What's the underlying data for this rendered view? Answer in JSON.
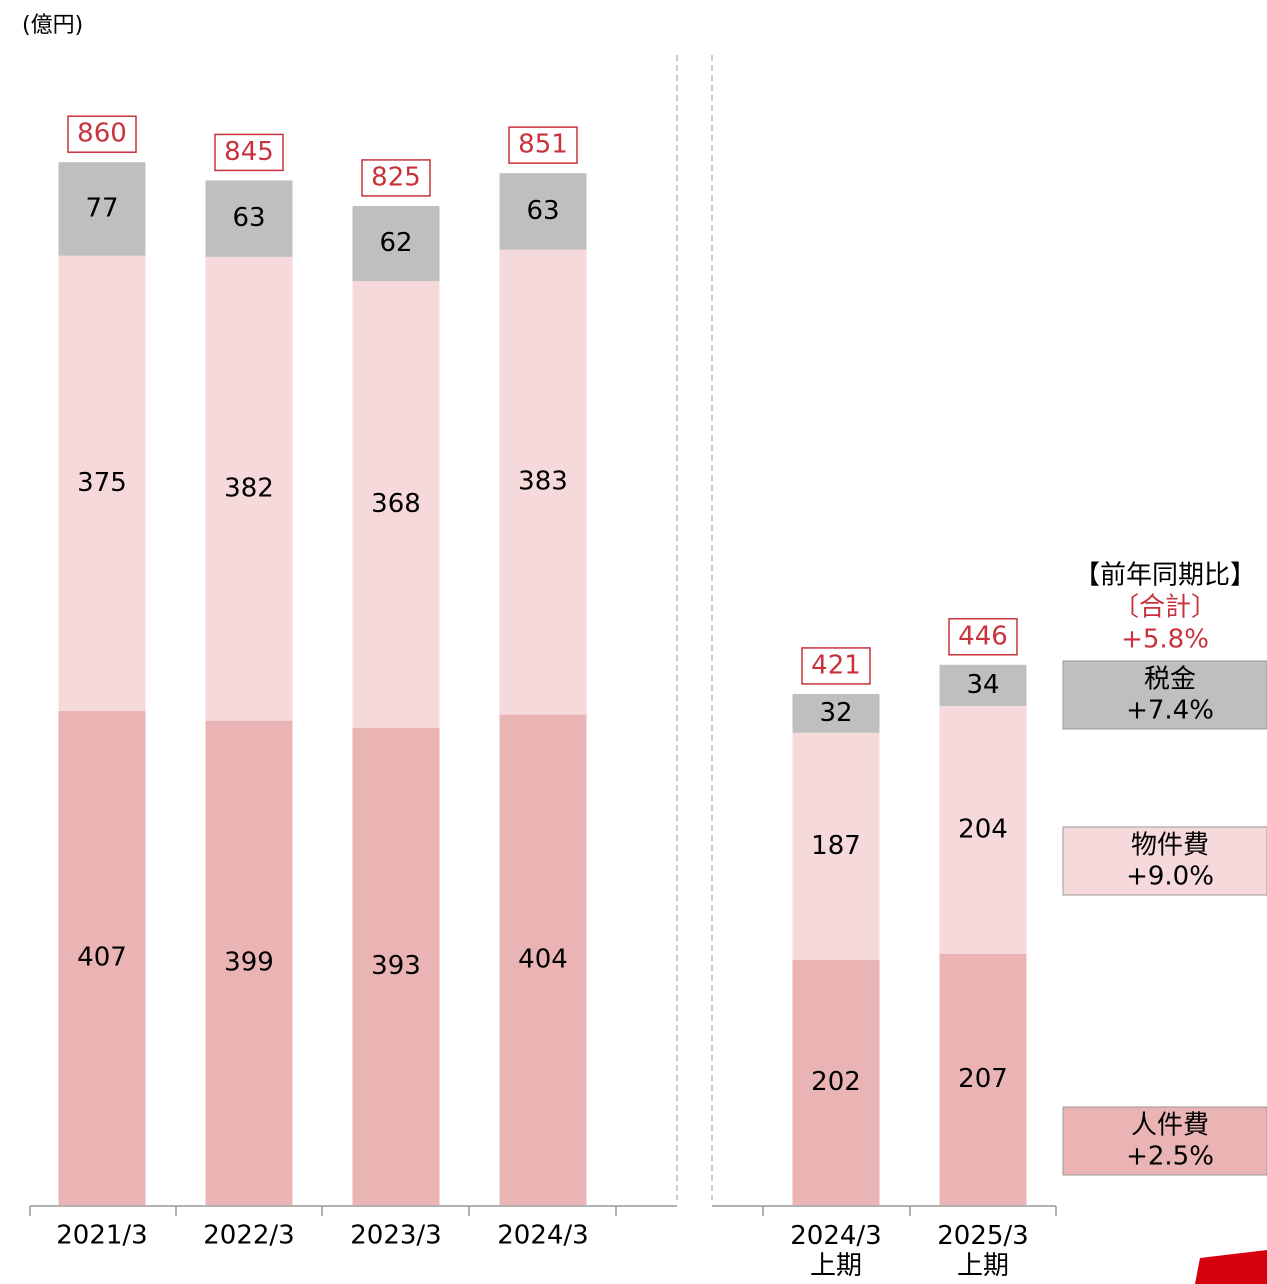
{
  "chart_data": {
    "type": "stacked_bar",
    "unit_label": "(億円)",
    "categories": [
      "2021/3",
      "2022/3",
      "2023/3",
      "2024/3",
      "2024/3\n上期",
      "2025/3\n上期"
    ],
    "series": [
      {
        "name": "人件費",
        "color": "#eab3b4",
        "change": "+2.5%",
        "values": [
          407,
          399,
          393,
          404,
          202,
          207
        ]
      },
      {
        "name": "物件費",
        "color": "#f6d9da",
        "change": "+9.0%",
        "values": [
          375,
          382,
          368,
          383,
          187,
          204
        ]
      },
      {
        "name": "税金",
        "color": "#bfbfbf",
        "change": "+7.4%",
        "values": [
          77,
          63,
          62,
          63,
          32,
          34
        ]
      }
    ],
    "totals": [
      860,
      845,
      825,
      851,
      421,
      446
    ],
    "ylim": [
      0,
      860
    ],
    "comparison_title": "【前年同期比】",
    "total_label": "〔合計〕",
    "total_change": "+5.8%"
  }
}
